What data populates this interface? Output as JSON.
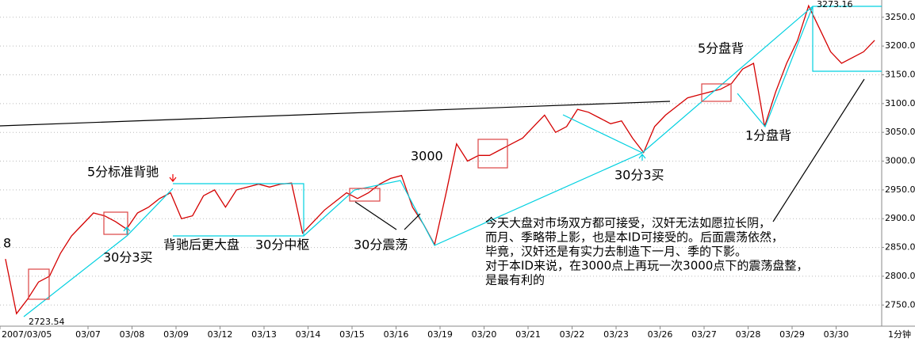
{
  "chart_data": {
    "type": "line",
    "categories": [
      "2007/03/05",
      null,
      null,
      null,
      null,
      null,
      null,
      null,
      "03/07",
      null,
      null,
      null,
      "03/08",
      null,
      null,
      null,
      "03/09",
      null,
      null,
      null,
      "03/12",
      null,
      null,
      null,
      "03/13",
      null,
      null,
      null,
      "03/14",
      null,
      null,
      null,
      "03/15",
      null,
      null,
      null,
      "03/16",
      null,
      null,
      null,
      "03/19",
      null,
      null,
      null,
      "03/20",
      null,
      null,
      null,
      "03/21",
      null,
      null,
      null,
      "03/22",
      null,
      null,
      null,
      "03/23",
      null,
      null,
      null,
      "03/26",
      null,
      null,
      null,
      "03/27",
      null,
      null,
      null,
      "03/28",
      null,
      null,
      null,
      "03/29",
      null,
      null,
      null,
      "03/30",
      null,
      null,
      null
    ],
    "series": [
      {
        "color": "#d40000",
        "values": [
          2830,
          2735,
          2760,
          2790,
          2800,
          2840,
          2870,
          2890,
          2910,
          2905,
          2895,
          2882,
          2910,
          2920,
          2935,
          2945,
          2900,
          2905,
          2940,
          2950,
          2920,
          2950,
          2955,
          2960,
          2955,
          2960,
          2962,
          2875,
          2895,
          2915,
          2930,
          2945,
          2935,
          2945,
          2960,
          2970,
          2975,
          2920,
          2890,
          2855,
          2940,
          3030,
          3000,
          3010,
          3010,
          3020,
          3030,
          3040,
          3060,
          3080,
          3050,
          3060,
          3090,
          3085,
          3075,
          3065,
          3070,
          3040,
          3015,
          3060,
          3080,
          3095,
          3110,
          3115,
          3120,
          3125,
          3135,
          3160,
          3170,
          3060,
          3120,
          3170,
          3210,
          3270,
          3230,
          3190,
          3170,
          3180,
          3190,
          3210
        ]
      }
    ],
    "ylim": [
      2716,
      3280
    ],
    "yticks": [
      {
        "value": 2750,
        "label": "2750.00"
      },
      {
        "value": 2800,
        "label": "2800.00"
      },
      {
        "value": 2850,
        "label": "2850.00"
      },
      {
        "value": 2900,
        "label": "2900.00"
      },
      {
        "value": 2950,
        "label": "2950.00"
      },
      {
        "value": 3000,
        "label": "3000.00"
      },
      {
        "value": 3050,
        "label": "3050.00"
      },
      {
        "value": 3100,
        "label": "3100.00"
      },
      {
        "value": 3150,
        "label": "3150.00"
      },
      {
        "value": 3200,
        "label": "3200.00"
      },
      {
        "value": 3250,
        "label": "3250.00"
      }
    ],
    "grid": true,
    "period_label": "1分钟",
    "high_label": 3273.16,
    "low_label": 2723.54,
    "left_label": "8",
    "annotations": [
      "5分标准背驰",
      "30分3买",
      "背驰后更大盘",
      "30分中枢",
      "30分震荡",
      "3000",
      "30分3买",
      "5分盘背",
      "1分盘背"
    ],
    "comment": [
      "今天大盘对市场双方都可接受，汉奸无法如愿拉长阴，",
      "而月、季略带上影，也是本ID可接受的。后面震荡依然，",
      "毕竟，汉奸还是有实力去制造下一月、季的下影。",
      "对于本ID来说，在3000点上再玩一次3000点下的震荡盘整，",
      "是最有利的"
    ]
  }
}
